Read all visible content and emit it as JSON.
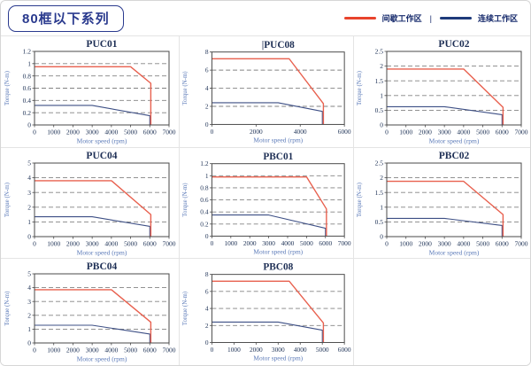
{
  "page": {
    "title": "80框以下系列",
    "legend": {
      "items": [
        {
          "label": "间歇工作区",
          "color": "#e8432c"
        },
        {
          "label": "连续工作区",
          "color": "#1e3a7a"
        }
      ],
      "separator": "|"
    }
  },
  "chart_data": [
    {
      "type": "line",
      "title": "PUC01",
      "cursor": "",
      "xlabel": "Motor speed (rpm)",
      "ylabel": "Torque (N-m)",
      "xlim": [
        0,
        7000
      ],
      "ylim": [
        0,
        1.2
      ],
      "xticks": [
        0,
        1000,
        2000,
        3000,
        4000,
        5000,
        6000,
        7000
      ],
      "yticks": [
        0,
        0.2,
        0.4,
        0.6,
        0.8,
        1,
        1.2
      ],
      "grid": "dashed-horizontal",
      "series": [
        {
          "name": "间歇工作区",
          "color": "#e8604e",
          "points": [
            [
              0,
              0.95
            ],
            [
              5000,
              0.95
            ],
            [
              6050,
              0.68
            ],
            [
              6050,
              0
            ]
          ]
        },
        {
          "name": "连续工作区",
          "color": "#3d4f85",
          "points": [
            [
              0,
              0.32
            ],
            [
              3000,
              0.32
            ],
            [
              6000,
              0.15
            ],
            [
              6000,
              0
            ]
          ]
        }
      ]
    },
    {
      "type": "line",
      "title": "PUC08",
      "cursor": "|",
      "xlabel": "Motor speed (rpm)",
      "ylabel": "Torque (N-m)",
      "xlim": [
        0,
        6000
      ],
      "ylim": [
        0,
        8
      ],
      "xticks": [
        0,
        2000,
        4000,
        6000
      ],
      "yticks": [
        0,
        2,
        4,
        6,
        8
      ],
      "grid": "dashed-horizontal",
      "series": [
        {
          "name": "间歇工作区",
          "color": "#e8604e",
          "points": [
            [
              0,
              7.25
            ],
            [
              3500,
              7.25
            ],
            [
              5050,
              2.3
            ],
            [
              5050,
              0
            ]
          ]
        },
        {
          "name": "连续工作区",
          "color": "#3d4f85",
          "points": [
            [
              0,
              2.4
            ],
            [
              3000,
              2.4
            ],
            [
              5000,
              1.45
            ],
            [
              5000,
              0
            ]
          ]
        }
      ]
    },
    {
      "type": "line",
      "title": "PUC02",
      "cursor": "",
      "xlabel": "Motor speed (rpm)",
      "ylabel": "Torque (N-m)",
      "xlim": [
        0,
        7000
      ],
      "ylim": [
        0,
        2.5
      ],
      "xticks": [
        0,
        1000,
        2000,
        3000,
        4000,
        5000,
        6000,
        7000
      ],
      "yticks": [
        0,
        0.5,
        1,
        1.5,
        2,
        2.5
      ],
      "grid": "dashed-horizontal",
      "series": [
        {
          "name": "间歇工作区",
          "color": "#e8604e",
          "points": [
            [
              0,
              1.9
            ],
            [
              4000,
              1.9
            ],
            [
              6050,
              0.6
            ],
            [
              6050,
              0
            ]
          ]
        },
        {
          "name": "连续工作区",
          "color": "#3d4f85",
          "points": [
            [
              0,
              0.62
            ],
            [
              3000,
              0.62
            ],
            [
              6000,
              0.35
            ],
            [
              6000,
              0
            ]
          ]
        }
      ]
    },
    {
      "type": "line",
      "title": "PUC04",
      "cursor": "",
      "xlabel": "Motor speed (rpm)",
      "ylabel": "Torque (N-m)",
      "xlim": [
        0,
        7000
      ],
      "ylim": [
        0,
        5
      ],
      "xticks": [
        0,
        1000,
        2000,
        3000,
        4000,
        5000,
        6000,
        7000
      ],
      "yticks": [
        0,
        1,
        2,
        3,
        4,
        5
      ],
      "grid": "dashed-horizontal",
      "series": [
        {
          "name": "间歇工作区",
          "color": "#e8604e",
          "points": [
            [
              0,
              3.8
            ],
            [
              4000,
              3.8
            ],
            [
              6050,
              1.5
            ],
            [
              6050,
              0
            ]
          ]
        },
        {
          "name": "连续工作区",
          "color": "#3d4f85",
          "points": [
            [
              0,
              1.35
            ],
            [
              3000,
              1.35
            ],
            [
              6000,
              0.7
            ],
            [
              6000,
              0
            ]
          ]
        }
      ]
    },
    {
      "type": "line",
      "title": "PBC01",
      "cursor": "",
      "xlabel": "Motor speed (rpm)",
      "ylabel": "Torque (N-m)",
      "xlim": [
        0,
        7000
      ],
      "ylim": [
        0,
        1.2
      ],
      "xticks": [
        0,
        1000,
        2000,
        3000,
        4000,
        5000,
        6000,
        7000
      ],
      "yticks": [
        0,
        0.2,
        0.4,
        0.6,
        0.8,
        1,
        1.2
      ],
      "grid": "dashed-horizontal",
      "series": [
        {
          "name": "间歇工作区",
          "color": "#e8604e",
          "points": [
            [
              0,
              0.98
            ],
            [
              5000,
              0.98
            ],
            [
              6050,
              0.45
            ],
            [
              6050,
              0
            ]
          ]
        },
        {
          "name": "连续工作区",
          "color": "#3d4f85",
          "points": [
            [
              0,
              0.35
            ],
            [
              3000,
              0.35
            ],
            [
              6000,
              0.13
            ],
            [
              6000,
              0
            ]
          ]
        }
      ]
    },
    {
      "type": "line",
      "title": "PBC02",
      "cursor": "",
      "xlabel": "Motor speed (rpm)",
      "ylabel": "Torque (N-m)",
      "xlim": [
        0,
        7000
      ],
      "ylim": [
        0,
        2.5
      ],
      "xticks": [
        0,
        1000,
        2000,
        3000,
        4000,
        5000,
        6000,
        7000
      ],
      "yticks": [
        0,
        0.5,
        1,
        1.5,
        2,
        2.5
      ],
      "grid": "dashed-horizontal",
      "series": [
        {
          "name": "间歇工作区",
          "color": "#e8604e",
          "points": [
            [
              0,
              1.88
            ],
            [
              4000,
              1.88
            ],
            [
              6050,
              0.75
            ],
            [
              6050,
              0
            ]
          ]
        },
        {
          "name": "连续工作区",
          "color": "#3d4f85",
          "points": [
            [
              0,
              0.62
            ],
            [
              3000,
              0.62
            ],
            [
              6000,
              0.38
            ],
            [
              6000,
              0
            ]
          ]
        }
      ]
    },
    {
      "type": "line",
      "title": "PBC04",
      "cursor": "",
      "xlabel": "Motor speed (rpm)",
      "ylabel": "Torque (N-m)",
      "xlim": [
        0,
        7000
      ],
      "ylim": [
        0,
        5
      ],
      "xticks": [
        0,
        1000,
        2000,
        3000,
        4000,
        5000,
        6000,
        7000
      ],
      "yticks": [
        0,
        1,
        2,
        3,
        4,
        5
      ],
      "grid": "dashed-horizontal",
      "series": [
        {
          "name": "间歇工作区",
          "color": "#e8604e",
          "points": [
            [
              0,
              3.85
            ],
            [
              4000,
              3.85
            ],
            [
              6050,
              1.5
            ],
            [
              6050,
              0
            ]
          ]
        },
        {
          "name": "连续工作区",
          "color": "#3d4f85",
          "points": [
            [
              0,
              1.28
            ],
            [
              3000,
              1.28
            ],
            [
              6000,
              0.65
            ],
            [
              6000,
              0
            ]
          ]
        }
      ]
    },
    {
      "type": "line",
      "title": "PBC08",
      "cursor": "",
      "xlabel": "Motor speed (rpm)",
      "ylabel": "Torque (N-m)",
      "xlim": [
        0,
        6000
      ],
      "ylim": [
        0,
        8
      ],
      "xticks": [
        0,
        1000,
        2000,
        3000,
        4000,
        5000,
        6000
      ],
      "yticks": [
        0,
        2,
        4,
        6,
        8
      ],
      "grid": "dashed-horizontal",
      "series": [
        {
          "name": "间歇工作区",
          "color": "#e8604e",
          "points": [
            [
              0,
              7.2
            ],
            [
              3500,
              7.2
            ],
            [
              5050,
              2.3
            ],
            [
              5050,
              0
            ]
          ]
        },
        {
          "name": "连续工作区",
          "color": "#3d4f85",
          "points": [
            [
              0,
              2.4
            ],
            [
              3000,
              2.4
            ],
            [
              5000,
              1.45
            ],
            [
              5000,
              0
            ]
          ]
        }
      ]
    }
  ]
}
